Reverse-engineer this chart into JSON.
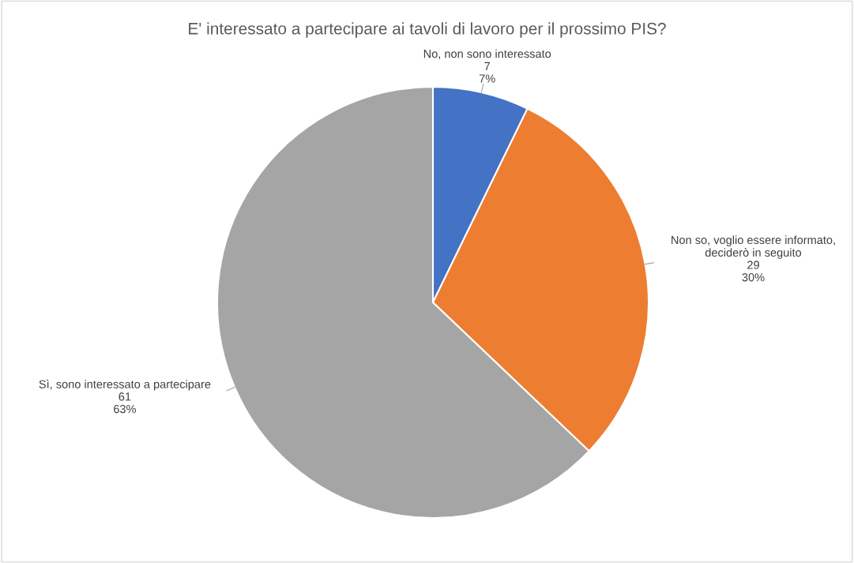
{
  "chart_data": {
    "type": "pie",
    "title": "E' interessato a partecipare ai tavoli di lavoro per il prossimo PIS?",
    "categories": [
      "No, non sono interessato",
      "Non so, voglio essere informato, deciderò in seguito",
      "Sì, sono interessato a partecipare"
    ],
    "values": [
      7,
      29,
      61
    ],
    "colors": [
      "#4472c4",
      "#ed7d31",
      "#a5a5a5"
    ],
    "value_labels": [
      "7\n7%",
      "29\n30%",
      "61\n63%"
    ]
  }
}
